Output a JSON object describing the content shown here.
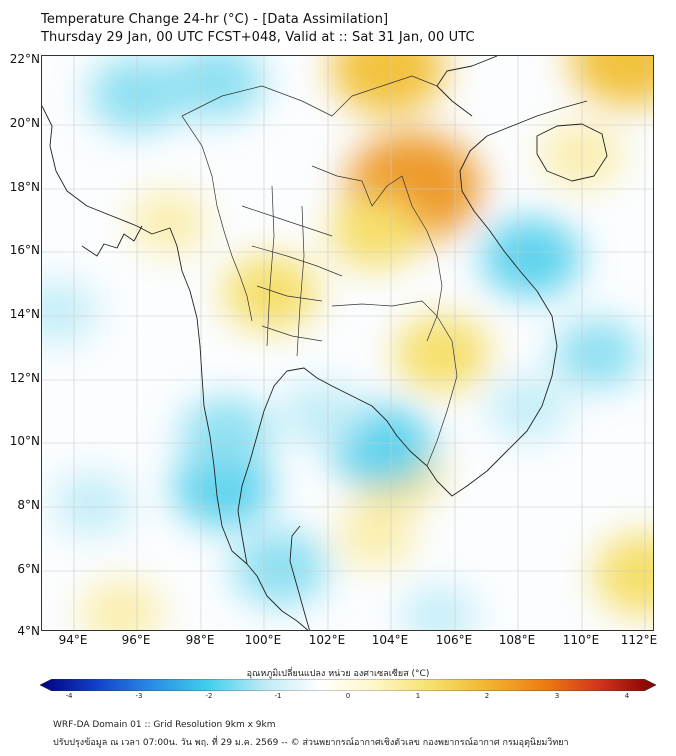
{
  "header": {
    "title": "Temperature Change 24-hr (°C) - [Data Assimilation]",
    "subtitle": "Thursday 29 Jan, 00 UTC FCST+048, Valid at :: Sat 31 Jan, 00 UTC"
  },
  "map": {
    "lat_labels": [
      "22°N",
      "20°N",
      "18°N",
      "16°N",
      "14°N",
      "12°N",
      "10°N",
      "8°N",
      "6°N",
      "4°N"
    ],
    "lon_labels": [
      "94°E",
      "96°E",
      "98°E",
      "100°E",
      "102°E",
      "104°E",
      "106°E",
      "108°E",
      "110°E",
      "112°E"
    ],
    "lat_range": [
      4,
      22
    ],
    "lon_range": [
      93,
      112.3
    ],
    "anomalies": [
      {
        "lon": 104.7,
        "lat": 17.9,
        "value": 2.0
      },
      {
        "lon": 103.9,
        "lat": 21.6,
        "value": 1.5
      },
      {
        "lon": 111.5,
        "lat": 21.9,
        "value": 1.6
      },
      {
        "lon": 100.2,
        "lat": 14.6,
        "value": 1.0
      },
      {
        "lon": 103.5,
        "lat": 16.5,
        "value": 0.9
      },
      {
        "lon": 105.6,
        "lat": 12.7,
        "value": 1.0
      },
      {
        "lon": 104.1,
        "lat": 9.1,
        "value": 1.0
      },
      {
        "lon": 110.0,
        "lat": 18.9,
        "value": 0.7
      },
      {
        "lon": 112.0,
        "lat": 5.8,
        "value": 1.2
      },
      {
        "lon": 95.5,
        "lat": 4.6,
        "value": 0.7
      },
      {
        "lon": 103.5,
        "lat": 7.0,
        "value": 0.6
      },
      {
        "lon": 97.0,
        "lat": 16.8,
        "value": 0.6
      },
      {
        "lon": 96.0,
        "lat": 20.8,
        "value": -1.0
      },
      {
        "lon": 98.5,
        "lat": 21.2,
        "value": -1.0
      },
      {
        "lon": 108.4,
        "lat": 15.7,
        "value": -1.1
      },
      {
        "lon": 110.5,
        "lat": 12.7,
        "value": -0.8
      },
      {
        "lon": 103.7,
        "lat": 9.8,
        "value": -1.2
      },
      {
        "lon": 98.7,
        "lat": 8.5,
        "value": -1.1
      },
      {
        "lon": 100.5,
        "lat": 6.0,
        "value": -1.0
      },
      {
        "lon": 98.8,
        "lat": 10.2,
        "value": -0.9
      },
      {
        "lon": 94.6,
        "lat": 8.0,
        "value": -0.6
      },
      {
        "lon": 101.8,
        "lat": 10.8,
        "value": -0.7
      },
      {
        "lon": 108.3,
        "lat": 11.0,
        "value": -0.6
      },
      {
        "lon": 93.5,
        "lat": 14.0,
        "value": -0.6
      },
      {
        "lon": 105.5,
        "lat": 4.5,
        "value": -0.5
      }
    ]
  },
  "colorbar": {
    "title": "อุณหภูมิเปลี่ยนแปลง หน่วย องศาเซลเซียส (°C)",
    "ticks": [
      "-4",
      "-3",
      "-2",
      "-1",
      "0",
      "1",
      "2",
      "3",
      "4"
    ],
    "min": -4,
    "max": 4,
    "colors": [
      "#000080",
      "#1240c8",
      "#2a8ce6",
      "#3fd0ec",
      "#bfeaf5",
      "#ffffff",
      "#fff6c6",
      "#f5e06a",
      "#f2b430",
      "#ee7d10",
      "#d2321c",
      "#800000"
    ]
  },
  "footer": {
    "line1": "WRF-DA Domain 01 :: Grid Resolution 9km x 9km",
    "line2": "ปรับปรุงข้อมูล ณ เวลา 07:00น. วัน พฤ. ที่ 29 ม.ค. 2569 -- © ส่วนพยากรณ์อากาศเชิงตัวเลข กองพยากรณ์อากาศ กรมอุตุนิยมวิทยา"
  }
}
